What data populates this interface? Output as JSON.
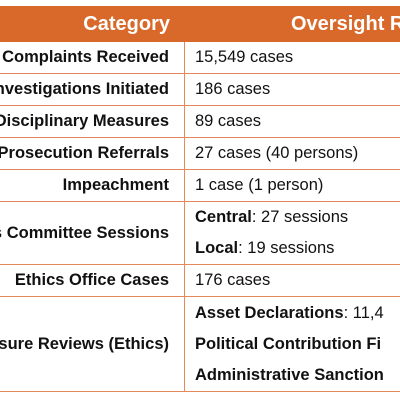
{
  "header": {
    "category": "Category",
    "oversight": "Oversight Results"
  },
  "rows": [
    {
      "category": "Complaints Received",
      "value": "15,549 cases"
    },
    {
      "category": "Investigations Initiated",
      "value": "186 cases"
    },
    {
      "category": "Disciplinary Measures",
      "value": "89 cases"
    },
    {
      "category": "Prosecution Referrals",
      "value": "27 cases (40 persons)"
    },
    {
      "category": "Impeachment",
      "value": "1 case (1 person)"
    },
    {
      "category": "Ethics Committee Sessions",
      "lines": [
        {
          "label": "Central",
          "rest": ": 27 sessions"
        },
        {
          "label": "Local",
          "rest": ": 19 sessions"
        }
      ]
    },
    {
      "category": "Ethics Office Cases",
      "value": "176 cases"
    },
    {
      "category": "Disclosure Reviews (Ethics)",
      "lines": [
        {
          "label": "Asset Declarations",
          "rest": ": 11,4"
        },
        {
          "label": "Political Contribution Fi",
          "rest": ""
        },
        {
          "label": "Administrative Sanction",
          "rest": ""
        }
      ]
    }
  ]
}
